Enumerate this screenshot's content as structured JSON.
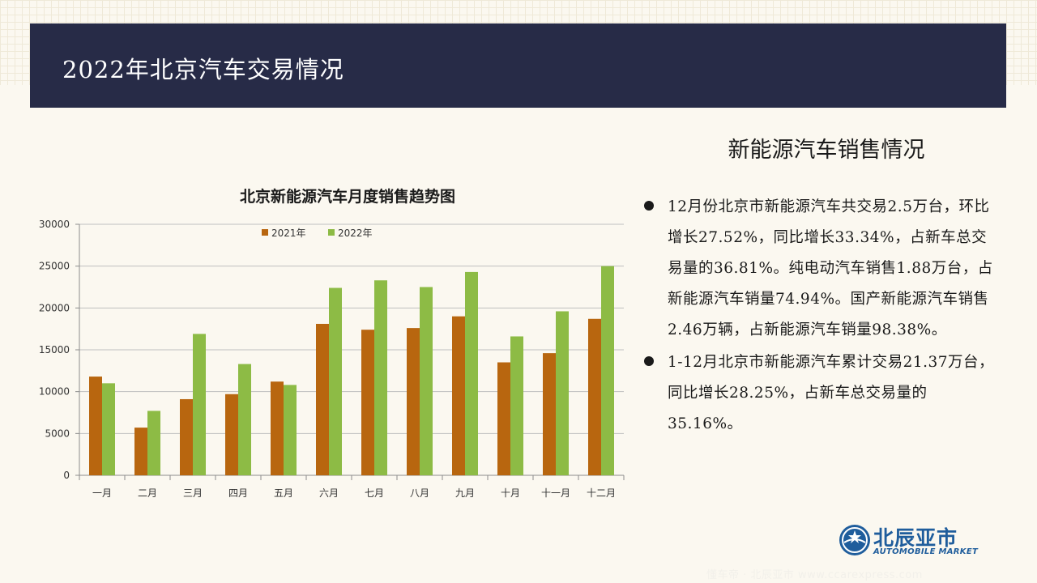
{
  "header": {
    "title": "2022年北京汽车交易情况"
  },
  "right_panel": {
    "title": "新能源汽车销售情况",
    "bullets": [
      "12月份北京市新能源汽车共交易2.5万台，环比增长27.52%，同比增长33.34%，占新车总交易量的36.81%。纯电动汽车销售1.88万台，占新能源汽车销量74.94%。国产新能源汽车销售2.46万辆，占新能源汽车销量98.38%。",
      "1-12月北京市新能源汽车累计交易21.37万台，同比增长28.25%，占新车总交易量的35.16%。"
    ]
  },
  "logo": {
    "cn": "北辰亚市",
    "en": "AUTOMOBILE MARKET"
  },
  "watermark": "懂车帝 · 北辰亚市 www.ccarexpress.com",
  "colors": {
    "header_bg": "#272b47",
    "series_2021": "#b8660f",
    "series_2022": "#8dbb45"
  },
  "chart_data": {
    "type": "bar",
    "title": "北京新能源汽车月度销售趋势图",
    "categories": [
      "一月",
      "二月",
      "三月",
      "四月",
      "五月",
      "六月",
      "七月",
      "八月",
      "九月",
      "十月",
      "十一月",
      "十二月"
    ],
    "series": [
      {
        "name": "2021年",
        "values": [
          11800,
          5700,
          9100,
          9700,
          11200,
          18100,
          17400,
          17600,
          19000,
          13500,
          14600,
          18700
        ]
      },
      {
        "name": "2022年",
        "values": [
          11000,
          7700,
          16900,
          13300,
          10800,
          22400,
          23300,
          22500,
          24300,
          16600,
          19600,
          25000
        ]
      }
    ],
    "yticks": [
      "0",
      "5000",
      "10000",
      "15000",
      "20000",
      "25000",
      "30000"
    ],
    "ylim": [
      0,
      30000
    ],
    "xlabel": "",
    "ylabel": "",
    "grid": true,
    "legend": "top-center"
  }
}
